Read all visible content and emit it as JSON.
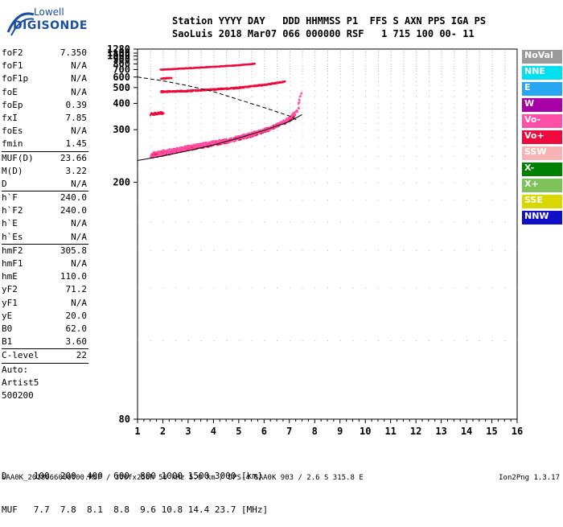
{
  "logo": {
    "brand": "Lowell",
    "product": "DIGISONDE"
  },
  "header": {
    "line1": "Station YYYY DAY   DDD HHMMSS P1  FFS S AXN PPS IGA PS",
    "line2": "SaoLuis 2018 Mar07 066 000000 RSF   1 715 100 00- 11"
  },
  "params": [
    {
      "group": [
        {
          "label": "foF2",
          "value": "7.350"
        },
        {
          "label": "foF1",
          "value": "N/A"
        },
        {
          "label": "foF1p",
          "value": "N/A"
        },
        {
          "label": "foE",
          "value": "N/A"
        },
        {
          "label": "foEp",
          "value": "0.39"
        },
        {
          "label": "fxI",
          "value": "7.85"
        },
        {
          "label": "foEs",
          "value": "N/A"
        },
        {
          "label": "fmin",
          "value": "1.45"
        }
      ]
    },
    {
      "group": [
        {
          "label": "MUF(D)",
          "value": "23.66"
        },
        {
          "label": "M(D)",
          "value": "3.22"
        },
        {
          "label": "D",
          "value": "N/A"
        }
      ]
    },
    {
      "group": [
        {
          "label": "h`F",
          "value": "240.0"
        },
        {
          "label": "h`F2",
          "value": "240.0"
        },
        {
          "label": "h`E",
          "value": "N/A"
        },
        {
          "label": "h`Es",
          "value": "N/A"
        }
      ]
    },
    {
      "group": [
        {
          "label": "hmF2",
          "value": "305.8"
        },
        {
          "label": "hmF1",
          "value": "N/A"
        },
        {
          "label": "hmE",
          "value": "110.0"
        },
        {
          "label": "yF2",
          "value": "71.2"
        },
        {
          "label": "yF1",
          "value": "N/A"
        },
        {
          "label": "yE",
          "value": "20.0"
        },
        {
          "label": "B0",
          "value": "62.0"
        },
        {
          "label": "B1",
          "value": "3.60"
        }
      ]
    },
    {
      "group": [
        {
          "label": "C-level",
          "value": "22"
        }
      ]
    }
  ],
  "autoscaling": {
    "line1": "Auto:",
    "line2": "Artist5",
    "line3": "500200"
  },
  "legend": [
    {
      "label": "NoVal",
      "color": "#9a9a9a"
    },
    {
      "label": "NNE",
      "color": "#00e0ee"
    },
    {
      "label": "E",
      "color": "#29a6f2"
    },
    {
      "label": "W",
      "color": "#a600a6"
    },
    {
      "label": "Vo-",
      "color": "#ff4fa6"
    },
    {
      "label": "Vo+",
      "color": "#ee0a3c"
    },
    {
      "label": "SSW",
      "color": "#f8b4b4"
    },
    {
      "label": "X-",
      "color": "#008000"
    },
    {
      "label": "X+",
      "color": "#7ec25a"
    },
    {
      "label": "SSE",
      "color": "#d8d800"
    },
    {
      "label": "NNW",
      "color": "#1010c8"
    }
  ],
  "chart_data": {
    "type": "scatter",
    "title": "",
    "xlabel": "",
    "ylabel": "",
    "xlim": [
      1,
      16
    ],
    "ylim": [
      80,
      1280
    ],
    "y_scale": "reciprocal",
    "x_ticks": [
      "1",
      "2",
      "3",
      "4",
      "5",
      "6",
      "7",
      "8",
      "9",
      "10",
      "11",
      "12",
      "13",
      "14",
      "15",
      "16"
    ],
    "y_ticks": [
      "80",
      "200",
      "300",
      "400",
      "500",
      "600",
      "700",
      "800",
      "900",
      "1000",
      "1100",
      "1280"
    ],
    "x_tick_values": [
      1,
      2,
      3,
      4,
      5,
      6,
      7,
      8,
      9,
      10,
      11,
      12,
      13,
      14,
      15,
      16
    ],
    "y_tick_values": [
      80,
      200,
      300,
      400,
      500,
      600,
      700,
      800,
      900,
      1000,
      1100,
      1280
    ],
    "grid": true,
    "series": [
      {
        "color": "#ee0a3c",
        "traces": [
          {
            "x": [
              1.5,
              2.5,
              3.5,
              4.5,
              5.5,
              6.2,
              6.8,
              7.2
            ],
            "y": [
              242,
              252,
              262,
              272,
              288,
              305,
              325,
              350
            ]
          },
          {
            "x": [
              1.9,
              3.0,
              4.0,
              5.0,
              6.0,
              6.8
            ],
            "y": [
              475,
              480,
              492,
              505,
              530,
              560
            ]
          },
          {
            "x": [
              1.5,
              2.0
            ],
            "y": [
              355,
              360
            ]
          },
          {
            "x": [
              1.9,
              3.0,
              4.0,
              5.0,
              5.6
            ],
            "y": [
              710,
              735,
              760,
              790,
              820
            ]
          },
          {
            "x": [
              1.9,
              2.3
            ],
            "y": [
              590,
              600
            ]
          }
        ]
      },
      {
        "color": "#ff4fa6",
        "traces": [
          {
            "x": [
              1.5,
              2.5,
              3.5,
              4.5,
              5.5,
              6.3,
              6.9,
              7.3,
              7.45
            ],
            "y": [
              243,
              253,
              263,
              274,
              290,
              308,
              335,
              370,
              470
            ]
          }
        ]
      }
    ],
    "curves": [
      {
        "style": "solid",
        "x": [
          1,
          2,
          3,
          4,
          5,
          6,
          7,
          7.5
        ],
        "y": [
          232,
          240,
          250,
          262,
          278,
          298,
          325,
          350
        ]
      },
      {
        "style": "dashed",
        "x": [
          1,
          2,
          3,
          4,
          5,
          6,
          7,
          7.3
        ],
        "y": [
          600,
          560,
          515,
          470,
          420,
          380,
          345,
          330
        ]
      }
    ]
  },
  "distance_table": {
    "d_label": "D",
    "d_values": [
      "100",
      "200",
      "400",
      "600",
      "800",
      "1000",
      "1500",
      "3000"
    ],
    "d_unit": "[km]",
    "muf_label": "MUF",
    "muf_values": [
      "7.7",
      "7.8",
      "8.1",
      "8.8",
      "9.6",
      "10.8",
      "14.4",
      "23.7"
    ],
    "muf_unit": "[MHz]"
  },
  "footer": {
    "file_info": "SAA0K_2018066000000.RSF / 300fx256h 50 kHz 5.0 km / DPS-4 SAA0K 903 / 2.6 S 315.8 E",
    "version": "Ion2Png 1.3.17"
  }
}
